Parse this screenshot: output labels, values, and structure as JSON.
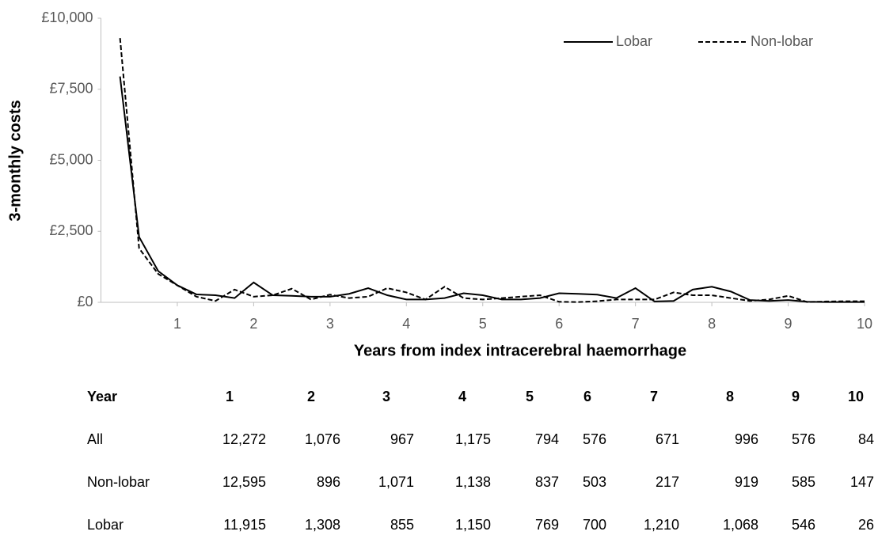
{
  "chart_data": {
    "type": "line",
    "xlabel": "Years from index intracerebral haemorrhage",
    "ylabel": "3-monthly costs",
    "x": [
      0.25,
      0.5,
      0.75,
      1,
      1.25,
      1.5,
      1.75,
      2,
      2.25,
      2.5,
      2.75,
      3,
      3.25,
      3.5,
      3.75,
      4,
      4.25,
      4.5,
      4.75,
      5,
      5.25,
      5.5,
      5.75,
      6,
      6.25,
      6.5,
      6.75,
      7,
      7.25,
      7.5,
      7.75,
      8,
      8.25,
      8.5,
      8.75,
      9,
      9.25,
      9.5,
      9.75,
      10
    ],
    "series": [
      {
        "name": "Lobar",
        "color": "#000000",
        "style": "solid",
        "values": [
          7950,
          2300,
          1100,
          600,
          280,
          250,
          150,
          700,
          250,
          230,
          200,
          200,
          300,
          500,
          250,
          100,
          100,
          150,
          320,
          250,
          100,
          100,
          150,
          320,
          300,
          270,
          150,
          500,
          30,
          50,
          450,
          550,
          380,
          80,
          50,
          80,
          20,
          10,
          10,
          10
        ]
      },
      {
        "name": "Non-lobar",
        "color": "#000000",
        "style": "dashed",
        "values": [
          9300,
          1900,
          1000,
          600,
          200,
          50,
          450,
          200,
          250,
          480,
          100,
          270,
          150,
          200,
          500,
          350,
          100,
          550,
          150,
          100,
          150,
          200,
          250,
          20,
          10,
          40,
          100,
          100,
          100,
          350,
          250,
          250,
          150,
          50,
          100,
          230,
          10,
          30,
          40,
          40
        ]
      }
    ],
    "xlim": [
      0,
      10
    ],
    "xticks": [
      1,
      2,
      3,
      4,
      5,
      6,
      7,
      8,
      9,
      10
    ],
    "ylim": [
      0,
      10000
    ],
    "yticks": [
      {
        "value": 0,
        "label": "£0"
      },
      {
        "value": 2500,
        "label": "£2,500"
      },
      {
        "value": 5000,
        "label": "£5,000"
      },
      {
        "value": 7500,
        "label": "£7,500"
      },
      {
        "value": 10000,
        "label": "£10,000"
      }
    ],
    "grid": false,
    "legend": "top-right"
  },
  "table": {
    "columns": [
      "Year",
      "1",
      "2",
      "3",
      "4",
      "5",
      "6",
      "7",
      "8",
      "9",
      "10"
    ],
    "rows": [
      [
        "All",
        "12,272",
        "1,076",
        "967",
        "1,175",
        "794",
        "576",
        "671",
        "996",
        "576",
        "84"
      ],
      [
        "Non-lobar",
        "12,595",
        "896",
        "1,071",
        "1,138",
        "837",
        "503",
        "217",
        "919",
        "585",
        "147"
      ],
      [
        "Lobar",
        "11,915",
        "1,308",
        "855",
        "1,150",
        "769",
        "700",
        "1,210",
        "1,068",
        "546",
        "26"
      ]
    ]
  }
}
